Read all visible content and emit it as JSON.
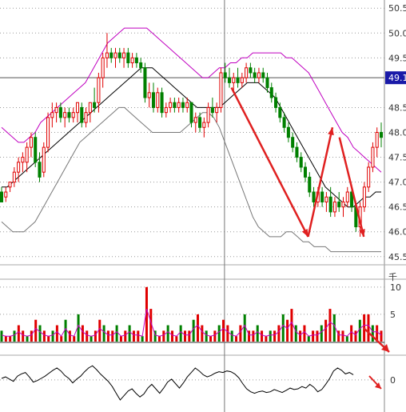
{
  "chart_data": [
    {
      "type": "candlestick",
      "panel": "price",
      "ylim": [
        45.4,
        50.6
      ],
      "y_ticks": [
        "50.5",
        "50.0",
        "49.5",
        "48.5",
        "48.0",
        "47.5",
        "47.0",
        "46.5",
        "46.0",
        "45.5"
      ],
      "crosshair_label": "49.1",
      "crosshair_price": 49.1,
      "x_count": 110,
      "crosshair_index": 64,
      "candles": [
        [
          46.8,
          46.9,
          46.6,
          46.6
        ],
        [
          46.7,
          46.9,
          46.6,
          46.8
        ],
        [
          46.9,
          47.0,
          46.8,
          47.0
        ],
        [
          47.0,
          47.3,
          46.9,
          47.2
        ],
        [
          47.2,
          47.5,
          47.0,
          47.4
        ],
        [
          47.4,
          47.6,
          47.2,
          47.5
        ],
        [
          47.4,
          47.8,
          47.2,
          47.7
        ],
        [
          47.7,
          48.0,
          47.5,
          47.9
        ],
        [
          47.9,
          48.0,
          47.3,
          47.4
        ],
        [
          47.4,
          47.6,
          47.0,
          47.1
        ],
        [
          47.2,
          47.8,
          47.1,
          47.7
        ],
        [
          47.7,
          48.4,
          47.6,
          48.3
        ],
        [
          48.3,
          48.6,
          48.1,
          48.4
        ],
        [
          48.4,
          48.6,
          48.2,
          48.5
        ],
        [
          48.5,
          48.6,
          48.2,
          48.3
        ],
        [
          48.3,
          48.5,
          48.1,
          48.4
        ],
        [
          48.4,
          48.5,
          48.2,
          48.3
        ],
        [
          48.3,
          48.5,
          48.2,
          48.4
        ],
        [
          48.4,
          48.6,
          48.2,
          48.6
        ],
        [
          48.5,
          48.6,
          48.1,
          48.2
        ],
        [
          48.2,
          48.5,
          48.1,
          48.4
        ],
        [
          48.4,
          48.6,
          48.2,
          48.6
        ],
        [
          48.6,
          48.9,
          48.4,
          48.5
        ],
        [
          48.6,
          49.2,
          48.4,
          49.1
        ],
        [
          49.1,
          49.6,
          48.9,
          49.5
        ],
        [
          49.5,
          50.0,
          49.3,
          49.6
        ],
        [
          49.6,
          49.7,
          49.4,
          49.5
        ],
        [
          49.5,
          49.7,
          49.3,
          49.6
        ],
        [
          49.6,
          49.7,
          49.4,
          49.5
        ],
        [
          49.5,
          49.7,
          49.3,
          49.6
        ],
        [
          49.6,
          49.7,
          49.3,
          49.4
        ],
        [
          49.4,
          49.6,
          49.3,
          49.5
        ],
        [
          49.5,
          49.6,
          49.3,
          49.4
        ],
        [
          49.4,
          49.5,
          49.2,
          49.3
        ],
        [
          49.3,
          49.4,
          48.6,
          48.7
        ],
        [
          48.7,
          49.0,
          48.5,
          48.8
        ],
        [
          48.8,
          49.0,
          48.4,
          48.5
        ],
        [
          48.5,
          48.9,
          48.4,
          48.8
        ],
        [
          48.8,
          48.9,
          48.3,
          48.4
        ],
        [
          48.4,
          48.6,
          48.3,
          48.5
        ],
        [
          48.5,
          48.7,
          48.4,
          48.6
        ],
        [
          48.6,
          48.7,
          48.4,
          48.5
        ],
        [
          48.5,
          48.7,
          48.4,
          48.6
        ],
        [
          48.6,
          48.7,
          48.4,
          48.5
        ],
        [
          48.5,
          48.7,
          48.4,
          48.6
        ],
        [
          48.6,
          48.6,
          48.1,
          48.2
        ],
        [
          48.2,
          48.4,
          48.0,
          48.3
        ],
        [
          48.3,
          48.4,
          48.0,
          48.1
        ],
        [
          48.1,
          48.3,
          47.9,
          48.2
        ],
        [
          48.2,
          48.6,
          48.1,
          48.5
        ],
        [
          48.5,
          48.7,
          48.3,
          48.4
        ],
        [
          48.4,
          48.6,
          48.2,
          48.5
        ],
        [
          48.5,
          49.3,
          48.4,
          49.2
        ],
        [
          49.2,
          49.4,
          49.0,
          49.1
        ],
        [
          49.1,
          49.3,
          48.9,
          49.0
        ],
        [
          49.0,
          49.2,
          48.8,
          49.1
        ],
        [
          49.1,
          49.3,
          48.9,
          49.0
        ],
        [
          49.0,
          49.2,
          48.9,
          49.1
        ],
        [
          49.1,
          49.4,
          49.0,
          49.3
        ],
        [
          49.3,
          49.4,
          49.1,
          49.2
        ],
        [
          49.2,
          49.3,
          49.0,
          49.1
        ],
        [
          49.1,
          49.3,
          49.0,
          49.2
        ],
        [
          49.2,
          49.3,
          49.0,
          49.1
        ],
        [
          49.1,
          49.2,
          48.8,
          48.9
        ],
        [
          48.9,
          49.0,
          48.6,
          48.7
        ],
        [
          48.7,
          48.8,
          48.4,
          48.5
        ],
        [
          48.5,
          48.6,
          48.2,
          48.3
        ],
        [
          48.3,
          48.4,
          48.0,
          48.1
        ],
        [
          48.1,
          48.2,
          47.8,
          47.9
        ],
        [
          47.9,
          48.0,
          47.6,
          47.7
        ],
        [
          47.7,
          47.8,
          47.4,
          47.5
        ],
        [
          47.5,
          47.6,
          47.2,
          47.3
        ],
        [
          47.3,
          47.4,
          47.0,
          47.1
        ],
        [
          47.1,
          47.2,
          46.7,
          46.8
        ],
        [
          46.8,
          46.9,
          46.5,
          46.6
        ],
        [
          46.6,
          46.9,
          46.5,
          46.8
        ],
        [
          46.8,
          46.9,
          46.5,
          46.6
        ],
        [
          46.6,
          46.8,
          46.4,
          46.7
        ],
        [
          46.7,
          46.9,
          46.3,
          46.4
        ],
        [
          46.4,
          46.7,
          46.3,
          46.6
        ],
        [
          46.6,
          46.8,
          46.4,
          46.5
        ],
        [
          46.5,
          46.7,
          46.3,
          46.6
        ],
        [
          46.6,
          46.9,
          46.5,
          46.8
        ],
        [
          46.8,
          46.9,
          46.4,
          46.5
        ],
        [
          46.5,
          46.6,
          46.0,
          46.1
        ],
        [
          46.1,
          46.6,
          45.9,
          46.5
        ],
        [
          46.5,
          47.0,
          46.4,
          46.9
        ],
        [
          46.9,
          47.4,
          46.8,
          47.3
        ],
        [
          47.3,
          47.8,
          47.2,
          47.7
        ],
        [
          47.7,
          48.1,
          47.5,
          48.0
        ],
        [
          48.0,
          48.2,
          47.7,
          47.9
        ]
      ],
      "bollinger_upper": [
        48.1,
        48.0,
        47.9,
        47.8,
        47.8,
        47.9,
        48.0,
        48.2,
        48.3,
        48.4,
        48.5,
        48.6,
        48.7,
        48.8,
        48.9,
        49.0,
        49.2,
        49.4,
        49.6,
        49.8,
        49.9,
        50.0,
        50.1,
        50.1,
        50.1,
        50.1,
        50.1,
        50.0,
        49.9,
        49.8,
        49.7,
        49.6,
        49.5,
        49.4,
        49.3,
        49.2,
        49.1,
        49.1,
        49.2,
        49.3,
        49.3,
        49.4,
        49.4,
        49.5,
        49.5,
        49.6,
        49.6,
        49.6,
        49.6,
        49.6,
        49.6,
        49.5,
        49.5,
        49.4,
        49.3,
        49.2,
        49.0,
        48.8,
        48.6,
        48.4,
        48.2,
        48.0,
        47.9,
        47.7,
        47.6,
        47.5,
        47.4,
        47.3,
        47.2
      ],
      "bollinger_mid": [
        46.9,
        46.9,
        47.0,
        47.1,
        47.2,
        47.3,
        47.4,
        47.5,
        47.6,
        47.7,
        47.8,
        47.9,
        48.0,
        48.1,
        48.2,
        48.3,
        48.4,
        48.5,
        48.6,
        48.7,
        48.8,
        48.9,
        49.0,
        49.1,
        49.2,
        49.3,
        49.3,
        49.3,
        49.2,
        49.1,
        49.0,
        48.9,
        48.8,
        48.7,
        48.6,
        48.5,
        48.5,
        48.5,
        48.5,
        48.5,
        48.6,
        48.7,
        48.8,
        48.9,
        49.0,
        49.0,
        49.0,
        48.9,
        48.8,
        48.7,
        48.5,
        48.3,
        48.1,
        47.9,
        47.7,
        47.5,
        47.3,
        47.1,
        46.9,
        46.8,
        46.7,
        46.6,
        46.5,
        46.5,
        46.6,
        46.7,
        46.7,
        46.8,
        46.8
      ],
      "bollinger_lower": [
        46.2,
        46.1,
        46.0,
        46.0,
        46.0,
        46.1,
        46.2,
        46.4,
        46.6,
        46.8,
        47.0,
        47.2,
        47.4,
        47.6,
        47.8,
        47.9,
        48.0,
        48.1,
        48.2,
        48.3,
        48.4,
        48.5,
        48.5,
        48.4,
        48.3,
        48.2,
        48.1,
        48.0,
        48.0,
        48.0,
        48.0,
        48.0,
        48.0,
        48.1,
        48.2,
        48.3,
        48.4,
        48.4,
        48.3,
        48.1,
        47.8,
        47.5,
        47.2,
        46.9,
        46.6,
        46.3,
        46.1,
        46.0,
        45.9,
        45.9,
        45.9,
        46.0,
        46.0,
        45.9,
        45.8,
        45.8,
        45.7,
        45.7,
        45.7,
        45.6,
        45.6,
        45.6,
        45.6,
        45.6,
        45.6,
        45.6,
        45.6,
        45.6,
        45.6
      ],
      "arrows": [
        {
          "from": [
            66,
            48.9
          ],
          "to": [
            88,
            45.9
          ]
        },
        {
          "from": [
            88,
            45.9
          ],
          "to": [
            95,
            48.1
          ]
        },
        {
          "from": [
            97,
            47.9
          ],
          "to": [
            104,
            45.9
          ]
        }
      ]
    },
    {
      "type": "bar",
      "panel": "volume",
      "unit_label": "千",
      "ylim": [
        0,
        11
      ],
      "y_ticks": [
        "10",
        "5"
      ],
      "values": [
        2,
        1,
        1,
        2,
        3,
        2,
        1,
        2,
        4,
        3,
        2,
        1,
        2,
        3,
        1,
        4,
        2,
        1,
        5,
        3,
        2,
        1,
        2,
        4,
        3,
        2,
        2,
        3,
        1,
        2,
        3,
        2,
        2,
        1,
        10,
        6,
        2,
        1,
        2,
        3,
        2,
        1,
        3,
        2,
        2,
        4,
        5,
        3,
        2,
        1,
        2,
        3,
        4,
        3,
        2,
        1,
        3,
        5,
        2,
        2,
        3,
        2,
        1,
        2,
        2,
        3,
        5,
        4,
        6,
        3,
        2,
        3,
        1,
        2,
        2,
        3,
        4,
        6,
        5,
        2,
        2,
        1,
        3,
        2,
        4,
        5,
        5,
        3,
        3,
        2
      ]
    },
    {
      "type": "line",
      "panel": "indicator",
      "y_ticks": [
        "0"
      ],
      "ylim": [
        -4,
        3
      ],
      "values": [
        0.2,
        0.4,
        0.1,
        -0.2,
        0.5,
        0.8,
        1.0,
        0.4,
        -0.3,
        -0.1,
        0.2,
        0.5,
        0.9,
        1.3,
        1.6,
        1.2,
        0.6,
        0.2,
        -0.4,
        0.1,
        0.5,
        1.1,
        1.6,
        1.9,
        1.4,
        0.8,
        0.3,
        -0.2,
        -0.9,
        -1.8,
        -2.7,
        -2.1,
        -1.5,
        -1.2,
        -1.8,
        -2.3,
        -1.9,
        -1.1,
        -0.6,
        -1.2,
        -1.8,
        -1.1,
        -0.3,
        0.1,
        -0.5,
        -1.1,
        -0.4,
        0.4,
        1.0,
        1.6,
        1.2,
        0.7,
        0.4,
        0.6,
        0.9,
        1.1,
        1.0,
        1.2,
        1.1,
        0.8,
        0.3,
        -0.5,
        -1.2,
        -1.6,
        -1.8,
        -1.6,
        -1.5,
        -1.7,
        -1.6,
        -1.3,
        -1.5,
        -1.7,
        -1.4,
        -1.1,
        -1.3,
        -1.2,
        -0.9,
        -1.1,
        -0.6,
        -1.0,
        -1.6,
        -1.3,
        -0.6,
        0.2,
        1.2,
        1.6,
        1.3,
        0.8,
        1.0,
        0.7
      ]
    }
  ]
}
